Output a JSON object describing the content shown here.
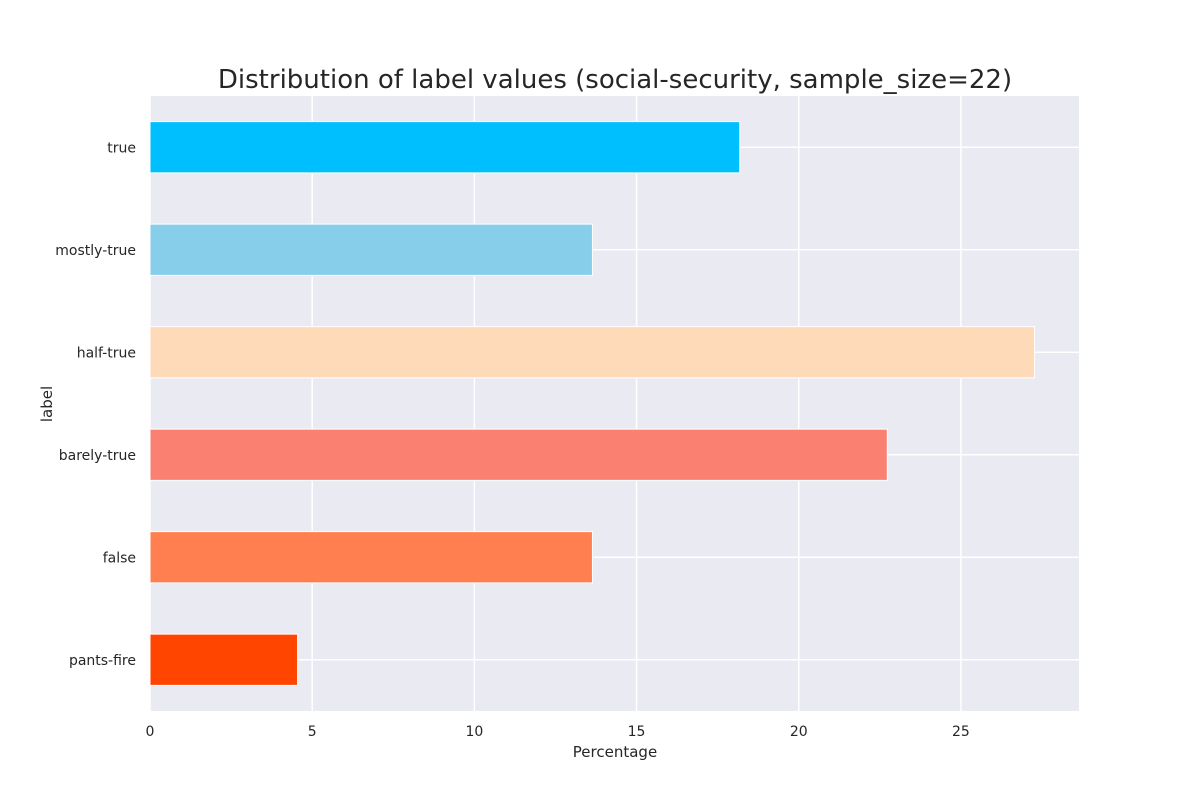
{
  "chart_data": {
    "type": "bar",
    "orientation": "horizontal",
    "title": "Distribution of label values (social-security, sample_size=22)",
    "xlabel": "Percentage",
    "ylabel": "label",
    "categories": [
      "true",
      "mostly-true",
      "half-true",
      "barely-true",
      "false",
      "pants-fire"
    ],
    "values": [
      18.18,
      13.64,
      27.27,
      22.73,
      13.64,
      4.55
    ],
    "colors": [
      "#00BFFF",
      "#87CEEB",
      "#FFDAB9",
      "#FA8072",
      "#FF7F50",
      "#FF4500"
    ],
    "xlim": [
      0,
      28.64
    ],
    "xticks": [
      0,
      5,
      10,
      15,
      20,
      25
    ],
    "grid": true,
    "legend": "none",
    "background": "#EAEAF2",
    "grid_color": "#FFFFFF"
  }
}
